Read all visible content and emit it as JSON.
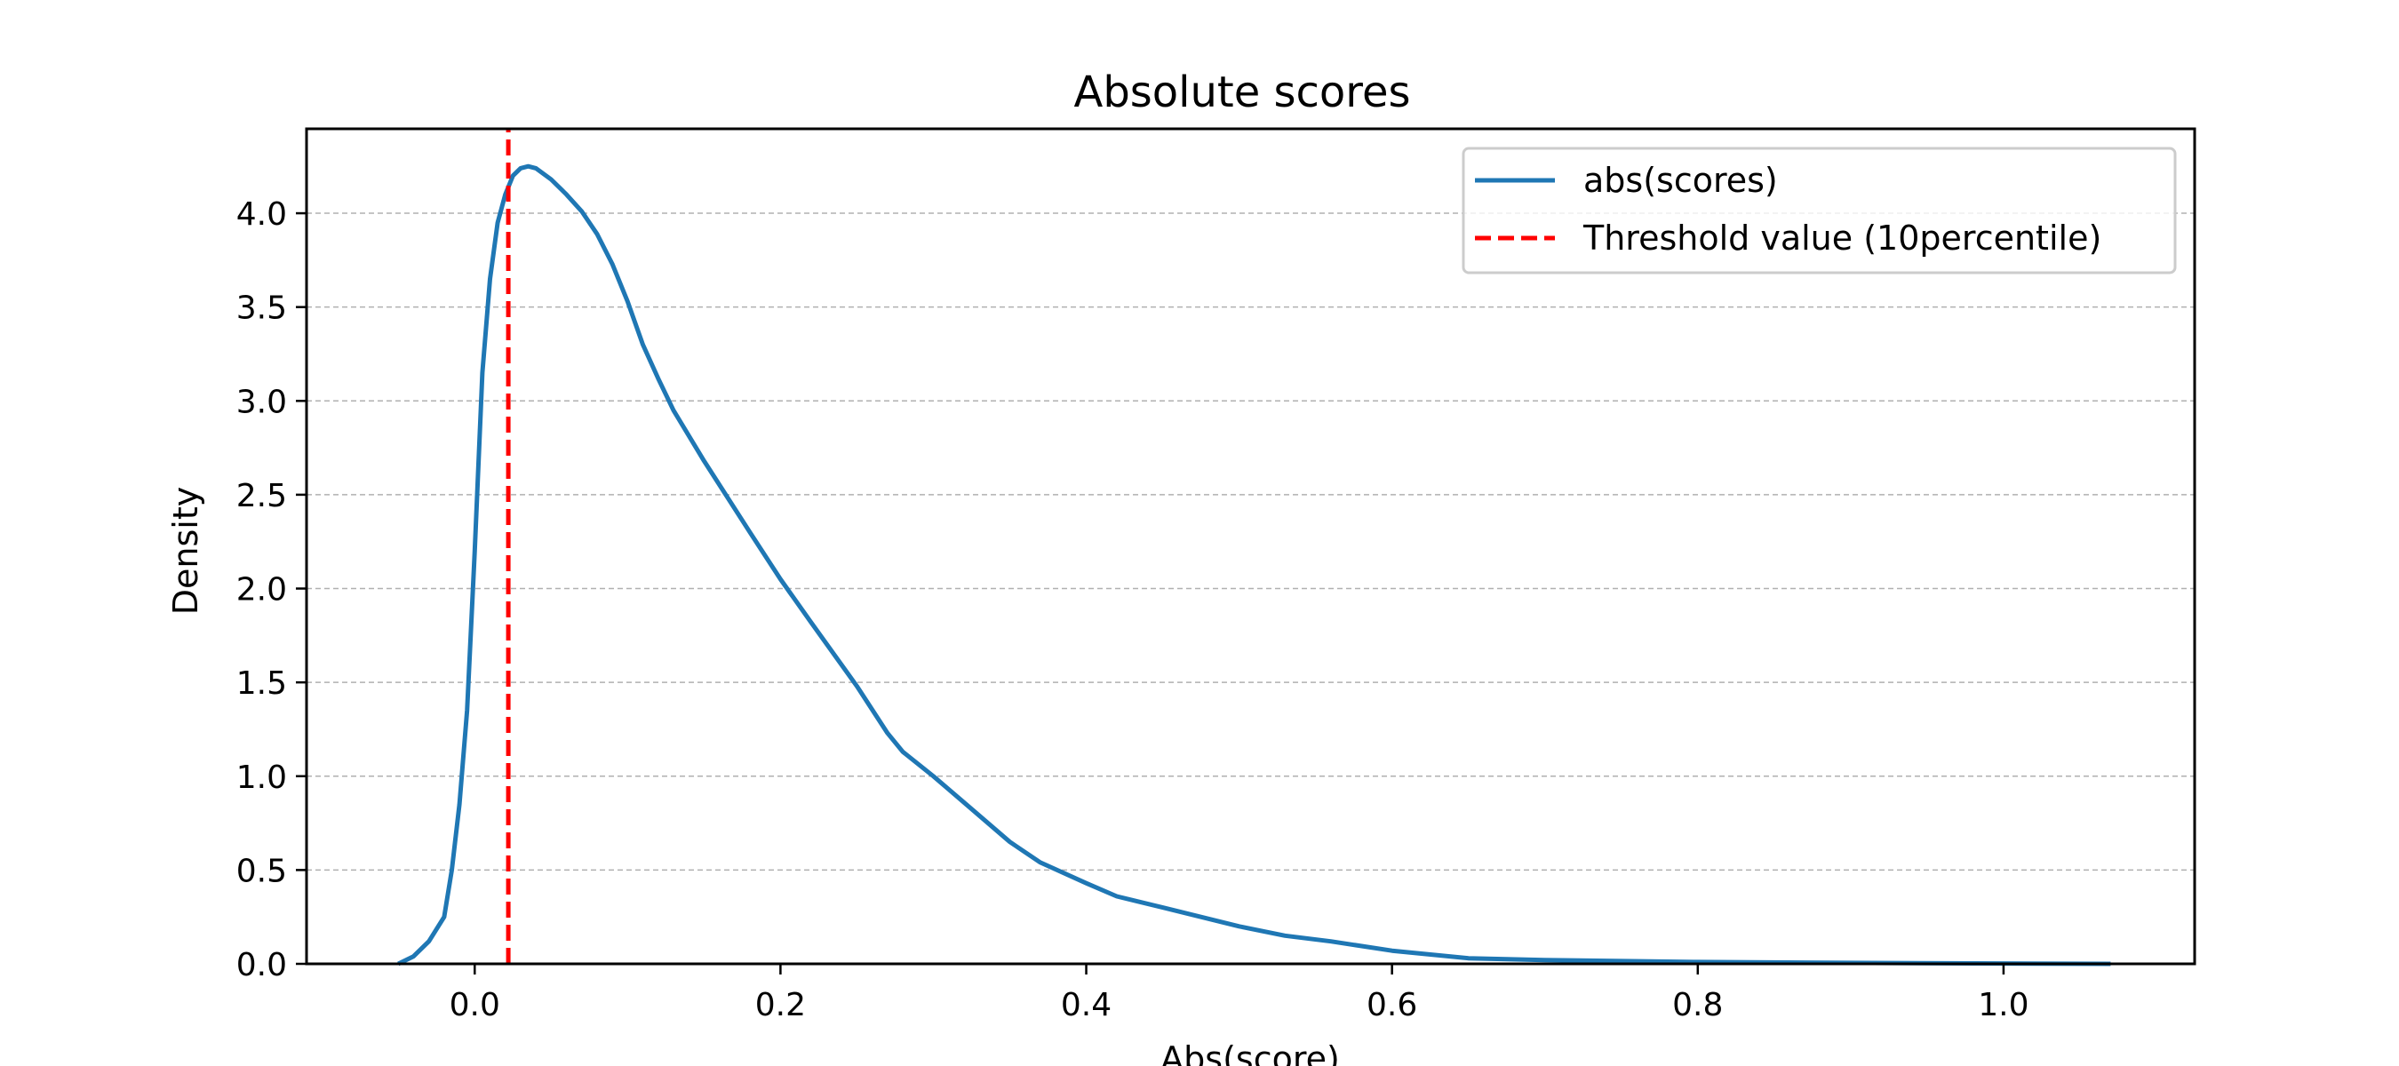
{
  "chart_data": {
    "type": "line",
    "title": "Absolute scores",
    "xlabel": "Abs(score)",
    "ylabel": "Density",
    "xlim": [
      -0.11,
      1.125
    ],
    "ylim": [
      0,
      4.45
    ],
    "xticks": [
      0.0,
      0.2,
      0.4,
      0.6,
      0.8,
      1.0
    ],
    "yticks": [
      0.0,
      0.5,
      1.0,
      1.5,
      2.0,
      2.5,
      3.0,
      3.5,
      4.0
    ],
    "grid": {
      "y": true,
      "x": false,
      "style": "dashed"
    },
    "legend_position": "top-right",
    "series": [
      {
        "name": "abs(scores)",
        "color": "#1f77b4",
        "style": "solid",
        "x": [
          -0.05,
          -0.04,
          -0.03,
          -0.02,
          -0.015,
          -0.01,
          -0.005,
          0.0,
          0.005,
          0.01,
          0.015,
          0.02,
          0.025,
          0.03,
          0.035,
          0.04,
          0.05,
          0.06,
          0.07,
          0.08,
          0.09,
          0.1,
          0.11,
          0.12,
          0.13,
          0.15,
          0.18,
          0.2,
          0.22,
          0.25,
          0.27,
          0.28,
          0.3,
          0.32,
          0.35,
          0.37,
          0.4,
          0.42,
          0.45,
          0.5,
          0.53,
          0.56,
          0.6,
          0.65,
          0.7,
          0.8,
          0.9,
          1.0,
          1.07
        ],
        "y": [
          0.0,
          0.04,
          0.12,
          0.25,
          0.5,
          0.85,
          1.35,
          2.2,
          3.15,
          3.65,
          3.95,
          4.1,
          4.2,
          4.24,
          4.25,
          4.24,
          4.18,
          4.1,
          4.01,
          3.89,
          3.73,
          3.53,
          3.3,
          3.12,
          2.95,
          2.68,
          2.3,
          2.05,
          1.82,
          1.48,
          1.23,
          1.13,
          1.0,
          0.86,
          0.65,
          0.54,
          0.43,
          0.36,
          0.3,
          0.2,
          0.15,
          0.12,
          0.07,
          0.03,
          0.02,
          0.01,
          0.005,
          0.002,
          0.0
        ]
      },
      {
        "name": "Threshold value (10percentile)",
        "color": "#ff0000",
        "style": "dashed",
        "x": [
          0.022,
          0.022
        ],
        "y": [
          0.0,
          4.45
        ]
      }
    ]
  }
}
